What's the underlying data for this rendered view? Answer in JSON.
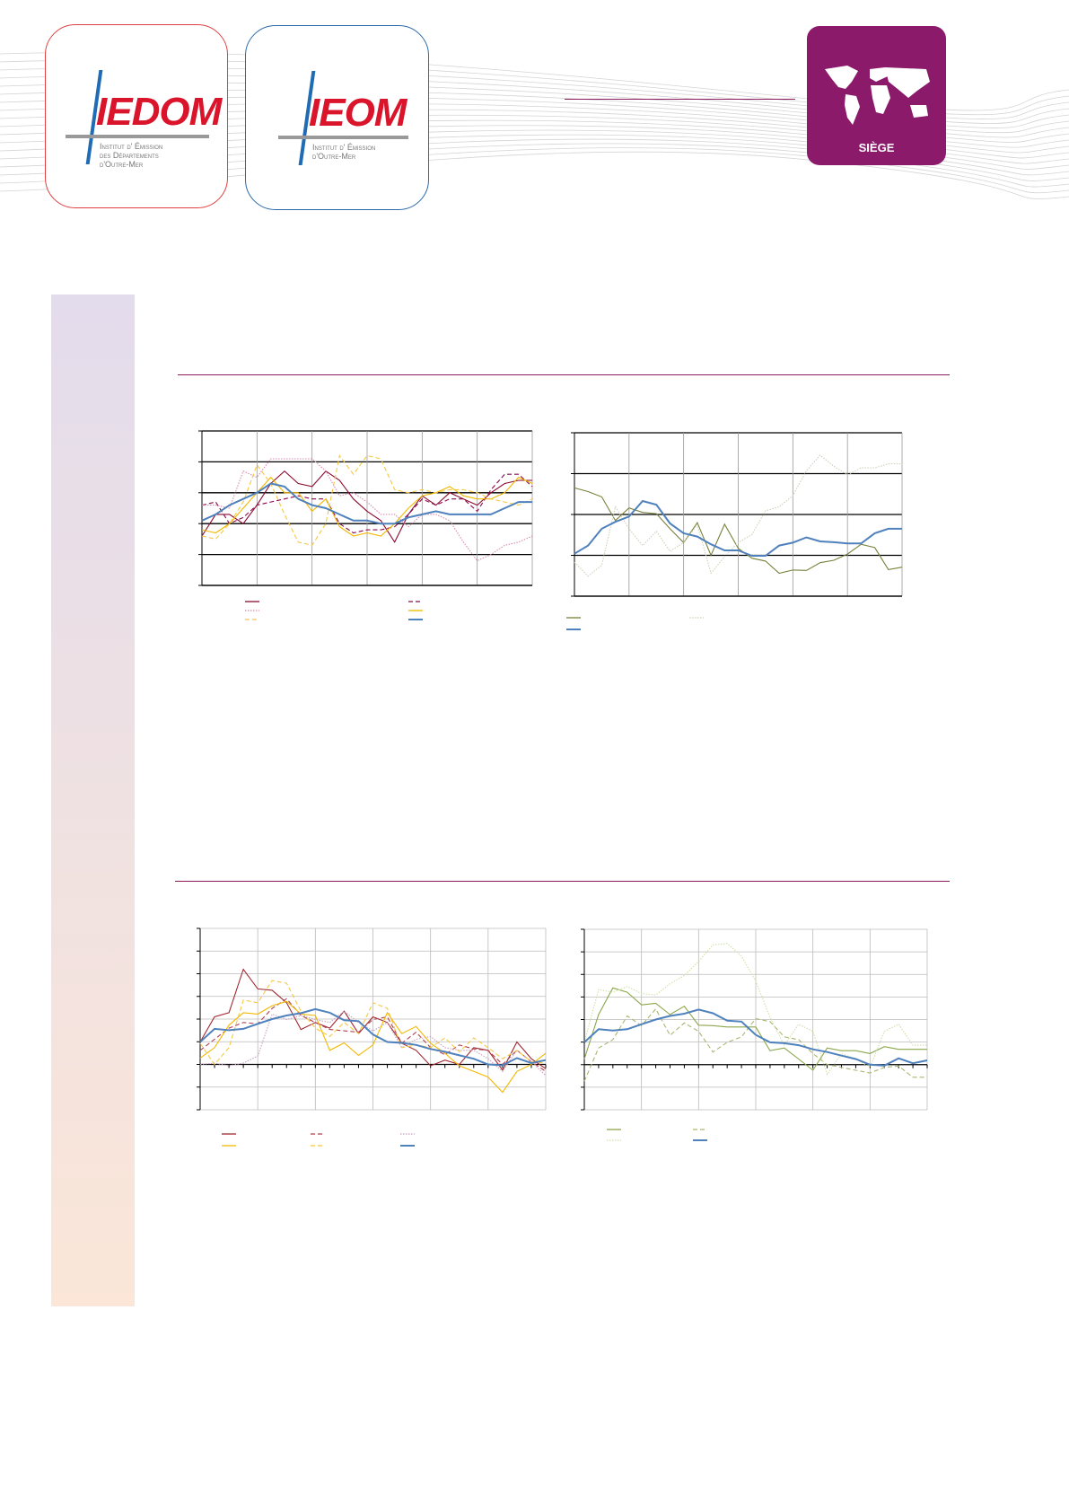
{
  "header": {
    "logo_iedom": {
      "mark": "IEDOM",
      "line1": "Institut d' Émission",
      "line2": "des Départements",
      "line3": "d'Outre-Mer"
    },
    "logo_ieom": {
      "mark": "IEOM",
      "line1": "Institut d' Émission",
      "line2": "d'Outre-Mer"
    },
    "badge": {
      "label": "SIÈGE",
      "color": "#8b1a6b"
    }
  },
  "colors": {
    "rule": "#8b1a5e",
    "iedom_border": "#e04040",
    "ieom_border": "#2a6aa8",
    "brand_red": "#d9142b",
    "brand_blue": "#1f6cb5"
  },
  "chart_data": [
    {
      "type": "line",
      "ylim": [
        0,
        5
      ],
      "grid": true,
      "series": [
        {
          "color": "#8b0a2e",
          "dash": "solid",
          "values": [
            1.6,
            2.3,
            2.3,
            2.0,
            2.6,
            3.3,
            3.7,
            3.3,
            3.2,
            3.7,
            3.4,
            2.8,
            2.4,
            2.1,
            1.4,
            2.3,
            2.9,
            2.6,
            3.0,
            2.8,
            2.6,
            3.0,
            3.3,
            3.4,
            3.4
          ]
        },
        {
          "color": "#8b0a4e",
          "dash": "dashed",
          "values": [
            2.6,
            2.7,
            2.0,
            2.2,
            2.6,
            2.7,
            2.8,
            2.9,
            2.8,
            2.8,
            2.0,
            1.7,
            1.8,
            1.8,
            1.9,
            2.3,
            2.8,
            2.6,
            2.8,
            2.8,
            2.4,
            3.1,
            3.6,
            3.6,
            3.2
          ]
        },
        {
          "color": "#d98ab0",
          "dash": "dotted",
          "values": [
            2.6,
            2.6,
            2.5,
            3.7,
            3.5,
            4.1,
            4.1,
            4.1,
            4.1,
            3.7,
            2.9,
            3.0,
            2.7,
            2.3,
            2.3,
            1.9,
            2.3,
            2.3,
            2.1,
            1.4,
            0.8,
            1.0,
            1.3,
            1.4,
            1.6
          ]
        },
        {
          "color": "#f2b800",
          "dash": "solid",
          "values": [
            1.8,
            1.7,
            2.0,
            2.5,
            3.0,
            3.5,
            3.0,
            3.0,
            2.4,
            2.8,
            1.9,
            1.6,
            1.7,
            1.6,
            2.0,
            2.5,
            2.9,
            3.0,
            3.2,
            2.9,
            2.8,
            2.8,
            3.0,
            3.5,
            3.3
          ]
        },
        {
          "color": "#f5c842",
          "dash": "dashed",
          "values": [
            1.6,
            1.5,
            2.0,
            2.7,
            3.9,
            3.3,
            2.3,
            1.4,
            1.3,
            2.0,
            4.2,
            3.6,
            4.2,
            4.1,
            3.1,
            3.0,
            3.1,
            3.0,
            3.1,
            3.1,
            3.0,
            2.8,
            2.7,
            2.6,
            2.8
          ]
        },
        {
          "color": "#4f81bd",
          "dash": "solid",
          "width": 2,
          "values": [
            2.1,
            2.3,
            2.6,
            2.8,
            3.0,
            3.3,
            3.2,
            2.8,
            2.6,
            2.5,
            2.3,
            2.1,
            2.1,
            2.0,
            2.0,
            2.2,
            2.3,
            2.4,
            2.3,
            2.3,
            2.3,
            2.3,
            2.5,
            2.7,
            2.7
          ]
        }
      ]
    },
    {
      "type": "line",
      "ylim": [
        0,
        4
      ],
      "grid": true,
      "series": [
        {
          "color": "#77803a",
          "dash": "solid",
          "values": [
            2.65,
            2.56,
            2.43,
            1.85,
            2.16,
            2.05,
            2.02,
            1.65,
            1.31,
            1.8,
            1.0,
            1.76,
            1.17,
            0.93,
            0.86,
            0.56,
            0.64,
            0.63,
            0.82,
            0.88,
            1.03,
            1.27,
            1.19,
            0.65,
            0.71
          ]
        },
        {
          "color": "#cfd0b8",
          "dash": "dotted",
          "values": [
            0.83,
            0.49,
            0.76,
            2.19,
            1.65,
            1.24,
            1.59,
            1.1,
            1.31,
            1.75,
            0.56,
            0.97,
            1.31,
            1.51,
            2.09,
            2.19,
            2.46,
            3.07,
            3.45,
            3.18,
            2.97,
            3.14,
            3.14,
            3.24,
            3.24
          ]
        },
        {
          "color": "#4f81bd",
          "dash": "solid",
          "width": 2,
          "values": [
            1.04,
            1.24,
            1.65,
            1.82,
            1.95,
            2.33,
            2.24,
            1.78,
            1.54,
            1.46,
            1.27,
            1.12,
            1.12,
            0.99,
            0.99,
            1.24,
            1.31,
            1.44,
            1.34,
            1.32,
            1.29,
            1.29,
            1.54,
            1.65,
            1.65
          ]
        }
      ]
    },
    {
      "type": "line",
      "ylim": [
        -2,
        6
      ],
      "grid": true,
      "series": [
        {
          "color": "#a02830",
          "dash": "solid",
          "values": [
            0.99,
            2.1,
            2.28,
            4.2,
            3.33,
            3.27,
            2.72,
            1.54,
            1.85,
            1.6,
            2.35,
            1.36,
            2.1,
            1.85,
            0.93,
            0.62,
            -0.06,
            0.19,
            0,
            0.74,
            0.62,
            -0.25,
            0.99,
            0.25,
            -0.19
          ]
        },
        {
          "color": "#b04050",
          "dash": "dashed",
          "values": [
            0.62,
            1.11,
            1.6,
            1.85,
            1.79,
            2.47,
            2.9,
            2.16,
            1.85,
            1.54,
            1.48,
            1.42,
            1.98,
            2.1,
            0.93,
            1.42,
            0.74,
            0.43,
            0.86,
            0.68,
            0.62,
            0,
            0.62,
            0.12,
            -0.31
          ]
        },
        {
          "color": "#c9a0c0",
          "dash": "dotted",
          "values": [
            0,
            0.06,
            -0.06,
            0.06,
            0.37,
            2.22,
            1.98,
            2.16,
            1.98,
            1.85,
            2.35,
            1.85,
            1.48,
            1.85,
            0.74,
            1.11,
            1.23,
            0.74,
            0.62,
            0.62,
            0.25,
            -0.31,
            0.62,
            0.12,
            -0.49
          ]
        },
        {
          "color": "#f2b800",
          "dash": "solid",
          "values": [
            0.28,
            0.74,
            1.73,
            2.28,
            2.22,
            2.59,
            2.78,
            2.22,
            2.16,
            0.62,
            0.95,
            0.4,
            0.86,
            2.28,
            1.36,
            1.67,
            0.93,
            0.49,
            -0.06,
            -0.31,
            -0.56,
            -1.23,
            -0.31,
            0,
            0.49
          ]
        },
        {
          "color": "#f5c842",
          "dash": "dashed",
          "values": [
            0.93,
            0,
            0.74,
            2.84,
            2.72,
            3.7,
            3.58,
            2.35,
            1.6,
            1.23,
            1.85,
            1.36,
            2.72,
            2.47,
            0.74,
            0.86,
            0.74,
            1.17,
            0.56,
            1.17,
            0.74,
            0.25,
            0.62,
            0.12,
            0.06
          ]
        },
        {
          "color": "#4f81bd",
          "dash": "solid",
          "width": 2,
          "values": [
            0.99,
            1.57,
            1.51,
            1.57,
            1.79,
            2.0,
            2.16,
            2.26,
            2.44,
            2.28,
            1.95,
            1.91,
            1.32,
            0.99,
            0.95,
            0.86,
            0.68,
            0.56,
            0.4,
            0.25,
            0,
            -0.04,
            0.28,
            0.06,
            0.19
          ]
        }
      ]
    },
    {
      "type": "line",
      "ylim": [
        -2,
        6
      ],
      "grid": true,
      "series": [
        {
          "color": "#8aa64a",
          "dash": "solid",
          "values": [
            0.25,
            2.22,
            3.4,
            3.21,
            2.65,
            2.72,
            2.22,
            2.59,
            1.75,
            1.73,
            1.67,
            1.67,
            1.67,
            0.62,
            0.74,
            0.25,
            -0.25,
            0.74,
            0.62,
            0.62,
            0.49,
            0.8,
            0.68,
            0.68,
            0.68
          ]
        },
        {
          "color": "#a8b870",
          "dash": "dashed",
          "values": [
            -0.74,
            0.74,
            1.11,
            2.16,
            1.73,
            2.47,
            1.3,
            1.85,
            1.48,
            0.56,
            0.99,
            1.23,
            2.04,
            1.91,
            1.23,
            1.11,
            0.49,
            0,
            -0.12,
            -0.25,
            -0.37,
            -0.12,
            -0.06,
            -0.56,
            -0.56
          ]
        },
        {
          "color": "#cfe0a8",
          "dash": "dotted",
          "values": [
            0.99,
            3.33,
            3.21,
            3.46,
            3.15,
            3.09,
            3.58,
            3.95,
            4.57,
            5.31,
            5.37,
            4.81,
            3.7,
            2.1,
            0.86,
            1.79,
            1.48,
            -0.43,
            0.49,
            0.25,
            -0.12,
            1.48,
            1.79,
            0.86,
            0.86
          ]
        },
        {
          "color": "#4f81bd",
          "dash": "solid",
          "width": 2,
          "values": [
            0.99,
            1.57,
            1.51,
            1.57,
            1.79,
            2.0,
            2.16,
            2.26,
            2.44,
            2.28,
            1.95,
            1.91,
            1.32,
            0.99,
            0.95,
            0.86,
            0.68,
            0.56,
            0.4,
            0.25,
            0,
            -0.04,
            0.28,
            0.06,
            0.19
          ]
        }
      ]
    }
  ]
}
